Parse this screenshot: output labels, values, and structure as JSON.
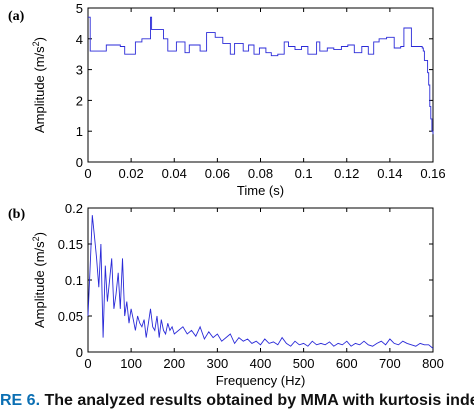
{
  "chart_data": [
    {
      "type": "line",
      "panel_label": "(a)",
      "xlabel": "Time (s)",
      "ylabel": "Amplitude (m/s",
      "ylabel_sup": "2",
      "ylabel_end": ")",
      "xlim": [
        0,
        0.16
      ],
      "ylim": [
        0,
        5
      ],
      "x_ticks": [
        "0",
        "0.02",
        "0.04",
        "0.06",
        "0.08",
        "0.1",
        "0.12",
        "0.14",
        "0.16"
      ],
      "y_ticks": [
        "0",
        "1",
        "2",
        "3",
        "4",
        "5"
      ],
      "grid": false,
      "series": [
        {
          "color": "#2a2ad8",
          "step": true,
          "x": [
            0,
            0.001,
            0.002,
            0.006,
            0.0085,
            0.0125,
            0.015,
            0.017,
            0.022,
            0.025,
            0.029,
            0.0295,
            0.0315,
            0.035,
            0.037,
            0.041,
            0.045,
            0.047,
            0.052,
            0.055,
            0.059,
            0.0625,
            0.0645,
            0.066,
            0.068,
            0.072,
            0.0745,
            0.077,
            0.0795,
            0.0825,
            0.085,
            0.088,
            0.091,
            0.093,
            0.096,
            0.099,
            0.102,
            0.106,
            0.1075,
            0.111,
            0.114,
            0.1175,
            0.1205,
            0.1235,
            0.127,
            0.13,
            0.1325,
            0.135,
            0.1385,
            0.142,
            0.145,
            0.1465,
            0.15,
            0.153,
            0.155,
            0.1555,
            0.156,
            0.1575,
            0.158,
            0.1585,
            0.159,
            0.1595,
            0.16
          ],
          "y": [
            4.7,
            3.6,
            3.6,
            3.6,
            3.8,
            3.8,
            3.75,
            3.5,
            3.9,
            4.0,
            4.7,
            4.3,
            4.3,
            4.0,
            3.6,
            3.9,
            3.55,
            3.8,
            3.6,
            4.2,
            4.05,
            3.85,
            3.85,
            3.5,
            3.85,
            3.6,
            3.8,
            3.5,
            3.7,
            3.55,
            3.45,
            3.5,
            3.9,
            3.75,
            3.65,
            3.75,
            3.5,
            3.9,
            3.6,
            3.7,
            3.65,
            3.75,
            3.8,
            3.55,
            3.75,
            3.5,
            3.9,
            4.0,
            4.05,
            3.7,
            3.75,
            4.35,
            3.75,
            3.75,
            3.7,
            3.6,
            3.3,
            2.9,
            2.5,
            1.8,
            1.4,
            1.0,
            0.9
          ]
        }
      ]
    },
    {
      "type": "line",
      "panel_label": "(b)",
      "xlabel": "Frequency (Hz)",
      "ylabel": "Amplitude (m/s",
      "ylabel_sup": "2",
      "ylabel_end": ")",
      "xlim": [
        0,
        800
      ],
      "ylim": [
        0,
        0.2
      ],
      "x_ticks": [
        "0",
        "100",
        "200",
        "300",
        "400",
        "500",
        "600",
        "700",
        "800"
      ],
      "y_ticks": [
        "0",
        "0.05",
        "0.1",
        "0.15",
        "0.2"
      ],
      "grid": false,
      "series": [
        {
          "color": "#2a2ad8",
          "step": false,
          "x": [
            0,
            5,
            10,
            15,
            20,
            25,
            30,
            35,
            40,
            45,
            50,
            55,
            60,
            65,
            70,
            75,
            80,
            85,
            90,
            95,
            100,
            105,
            110,
            115,
            120,
            125,
            130,
            135,
            140,
            145,
            150,
            155,
            160,
            165,
            170,
            175,
            180,
            185,
            190,
            195,
            200,
            210,
            220,
            230,
            240,
            250,
            260,
            270,
            280,
            290,
            300,
            310,
            320,
            330,
            340,
            350,
            360,
            370,
            380,
            390,
            400,
            410,
            420,
            430,
            440,
            450,
            460,
            470,
            480,
            490,
            500,
            510,
            520,
            530,
            540,
            550,
            560,
            570,
            580,
            590,
            600,
            610,
            620,
            630,
            640,
            650,
            660,
            670,
            680,
            690,
            700,
            710,
            720,
            730,
            740,
            750,
            760,
            770,
            780,
            790,
            800
          ],
          "y": [
            0.05,
            0.12,
            0.19,
            0.16,
            0.13,
            0.09,
            0.15,
            0.02,
            0.12,
            0.07,
            0.1,
            0.13,
            0.06,
            0.08,
            0.11,
            0.06,
            0.13,
            0.05,
            0.07,
            0.04,
            0.06,
            0.045,
            0.03,
            0.05,
            0.04,
            0.035,
            0.045,
            0.02,
            0.04,
            0.06,
            0.035,
            0.03,
            0.05,
            0.02,
            0.045,
            0.03,
            0.025,
            0.04,
            0.03,
            0.035,
            0.025,
            0.03,
            0.035,
            0.025,
            0.03,
            0.022,
            0.035,
            0.018,
            0.028,
            0.02,
            0.025,
            0.015,
            0.02,
            0.025,
            0.012,
            0.02,
            0.015,
            0.018,
            0.012,
            0.015,
            0.01,
            0.018,
            0.012,
            0.014,
            0.01,
            0.02,
            0.012,
            0.008,
            0.015,
            0.01,
            0.012,
            0.008,
            0.015,
            0.01,
            0.012,
            0.01,
            0.014,
            0.008,
            0.012,
            0.01,
            0.015,
            0.008,
            0.012,
            0.01,
            0.015,
            0.01,
            0.008,
            0.012,
            0.015,
            0.01,
            0.018,
            0.012,
            0.01,
            0.015,
            0.012,
            0.01,
            0.008,
            0.012,
            0.01,
            0.01,
            0.005
          ]
        }
      ]
    }
  ],
  "caption": {
    "figure_label": "RE 6.",
    "text": "The analyzed results obtained by MMA with kurtosis inde"
  }
}
